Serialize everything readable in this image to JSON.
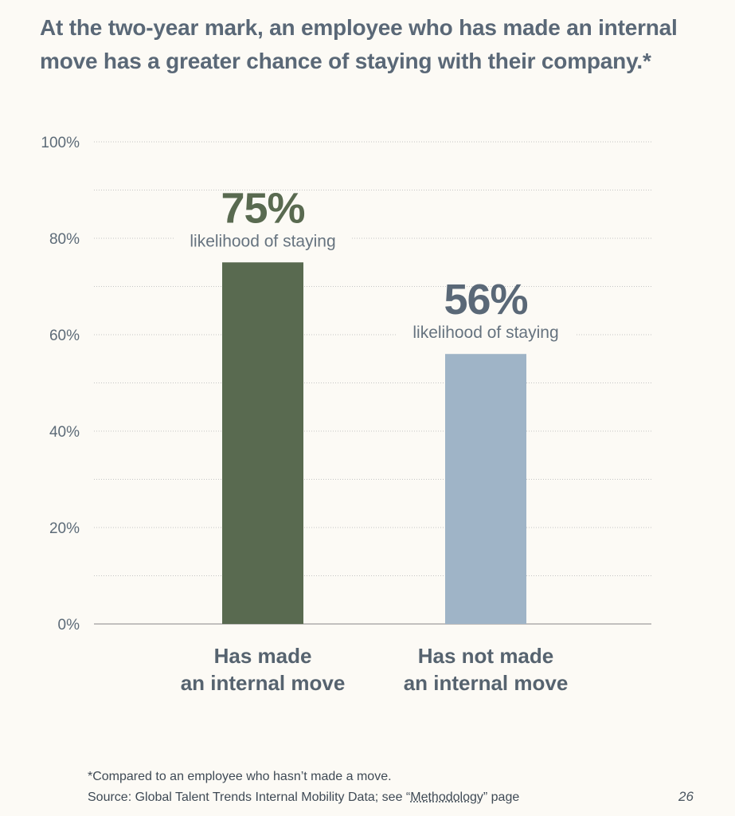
{
  "title": "At the two-year mark, an employee who has made an internal move has a greater chance of staying with their company.*",
  "chart_data": {
    "type": "bar",
    "title": "",
    "xlabel": "",
    "ylabel": "",
    "ylim": [
      0,
      100
    ],
    "y_ticks": [
      "0%",
      "20%",
      "40%",
      "60%",
      "80%",
      "100%"
    ],
    "y_tick_values": [
      0,
      20,
      40,
      60,
      80,
      100
    ],
    "minor_gridlines_at": [
      10,
      30,
      50,
      70,
      90
    ],
    "grid": true,
    "categories": [
      [
        "Has made",
        "an internal move"
      ],
      [
        "Has not made",
        "an internal move"
      ]
    ],
    "values": [
      75,
      56
    ],
    "value_labels": [
      "75%",
      "56%"
    ],
    "callout_text": [
      "likelihood of staying",
      "likelihood of staying"
    ],
    "colors": [
      "#596a50",
      "#9fb4c7"
    ],
    "value_label_colors": [
      "#596a50",
      "#5a6877"
    ]
  },
  "footnote": {
    "line1": "*Compared to an employee who hasn’t made a move.",
    "source_prefix": "Source: Global Talent Trends Internal Mobility Data; see “",
    "methodology_link": "Methodology",
    "source_suffix": "” page"
  },
  "page_number": "26"
}
